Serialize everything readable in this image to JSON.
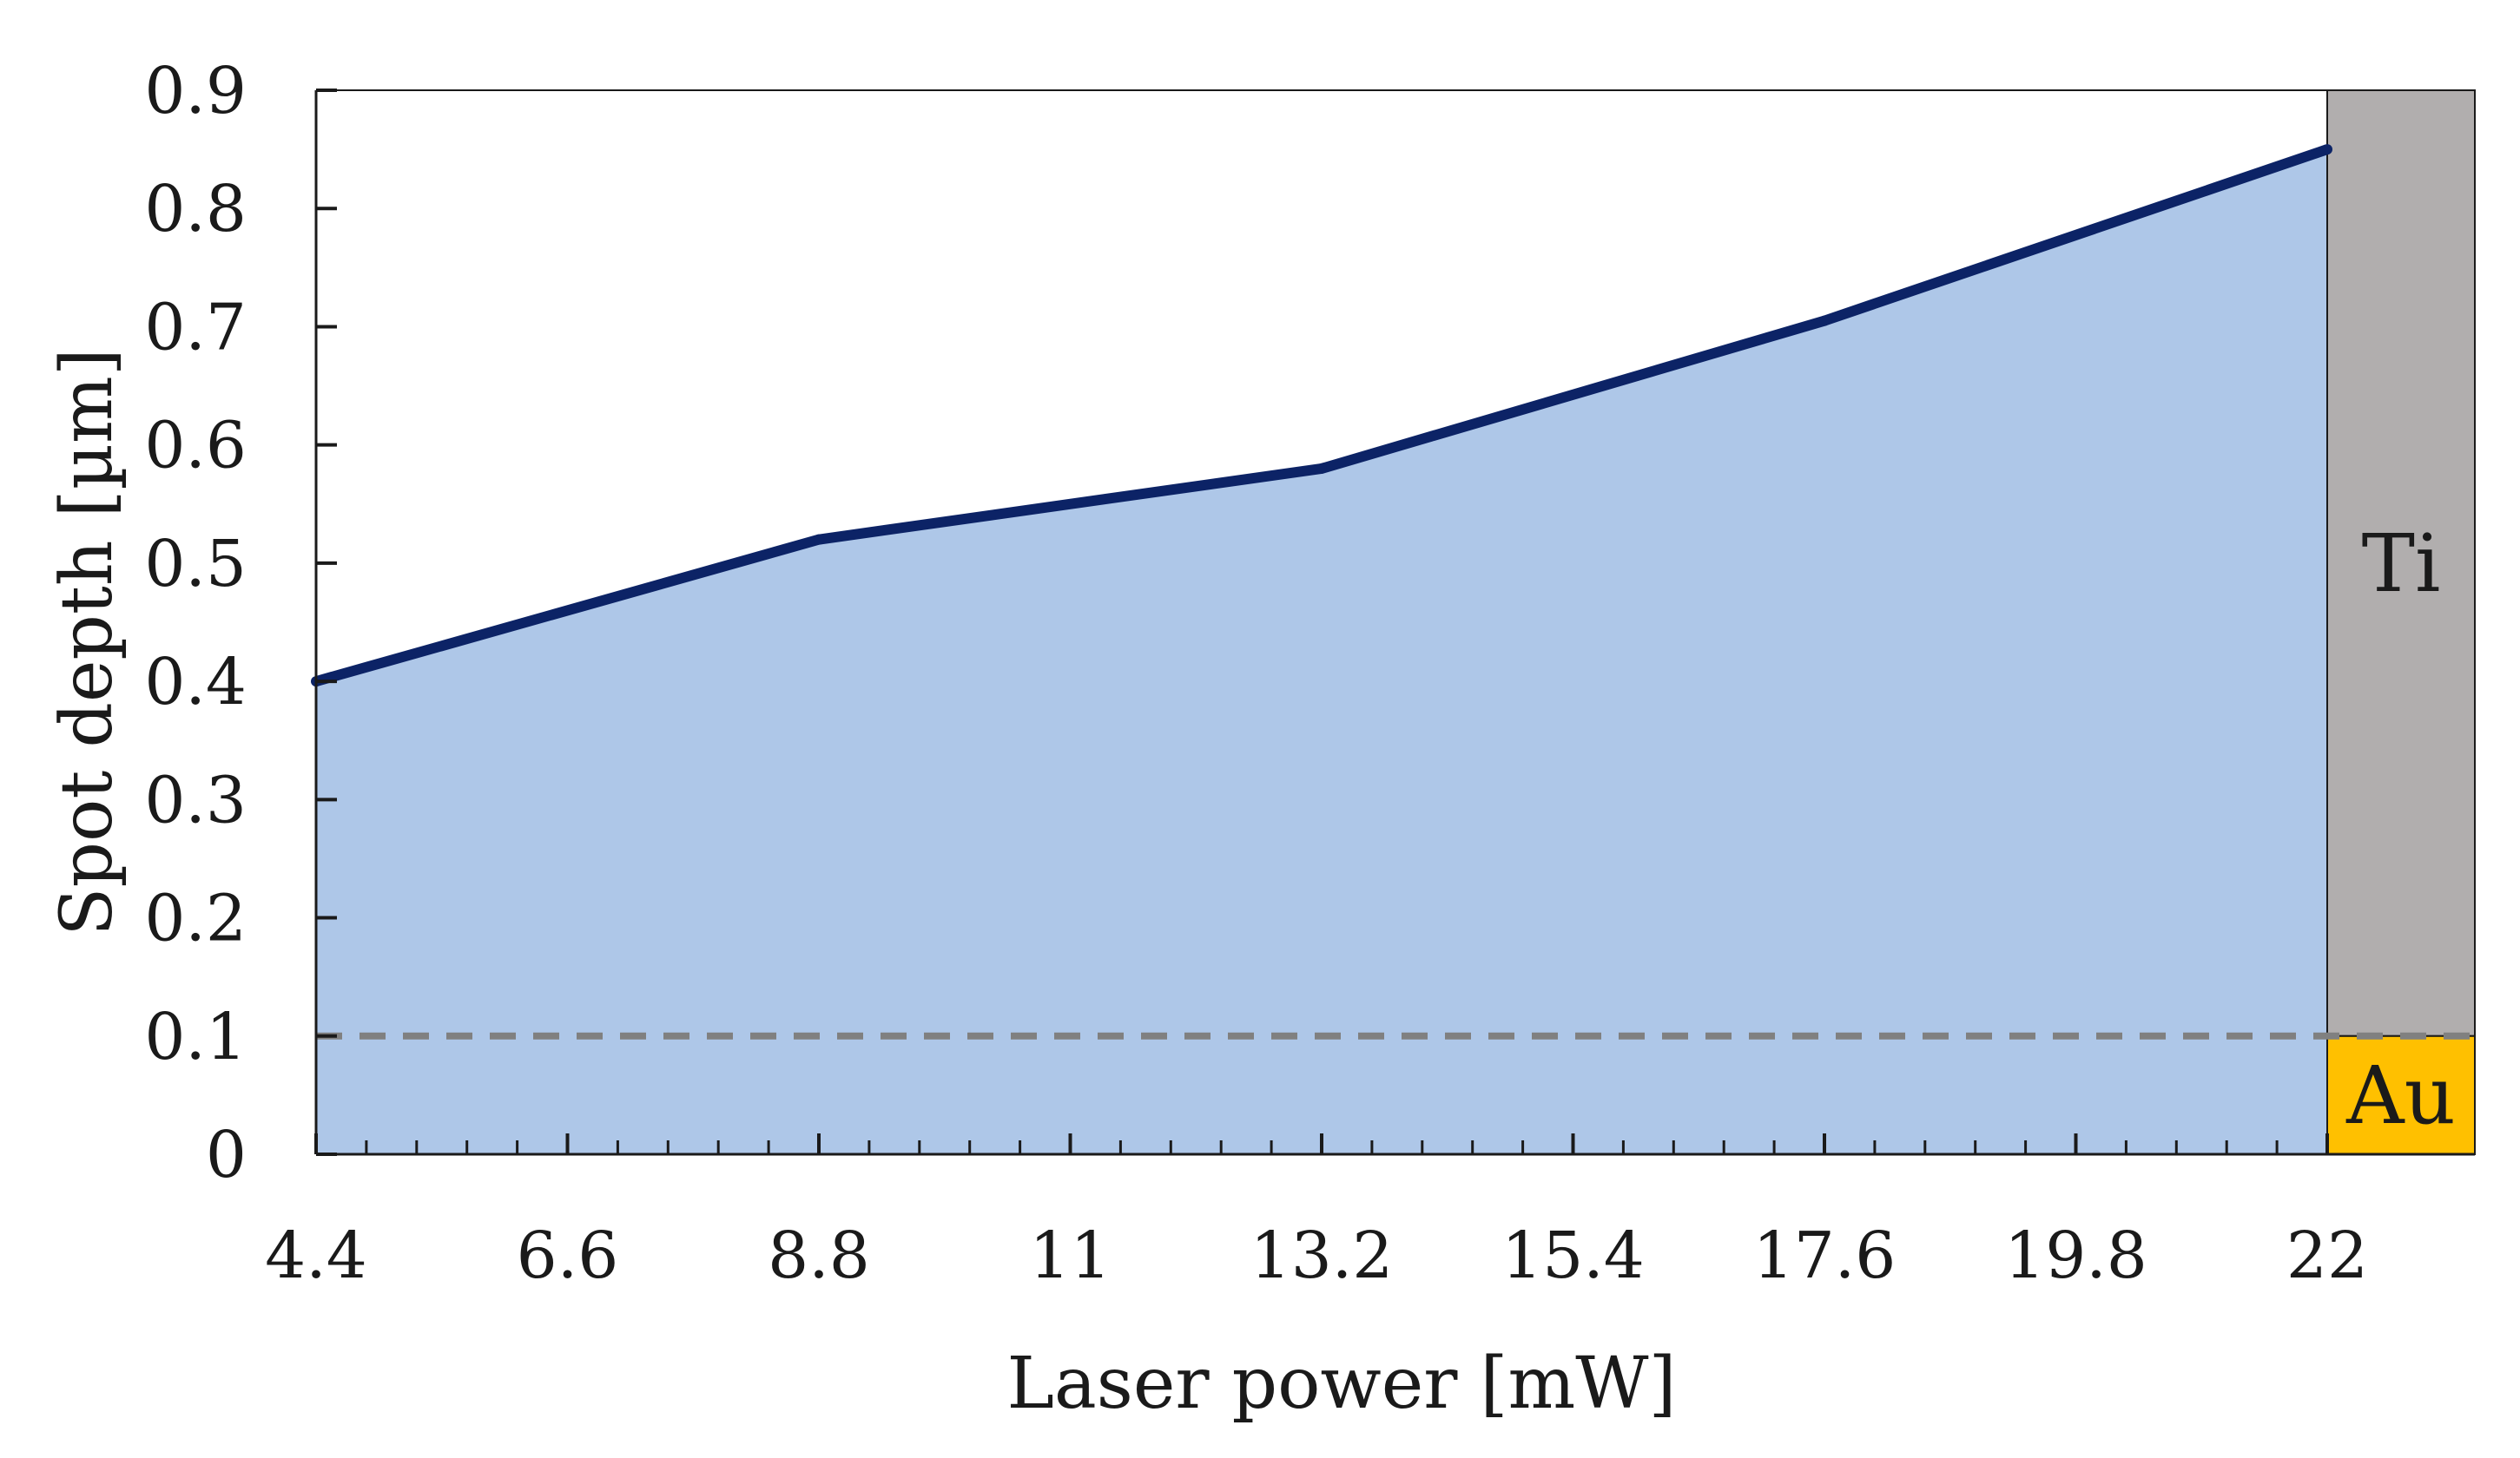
{
  "chart_data": {
    "type": "area",
    "title": "",
    "xlabel": "Laser power [mW]",
    "ylabel": "Spot  depth [µm]",
    "x_ticks": [
      "4.4",
      "6.6",
      "8.8",
      "11",
      "13.2",
      "15.4",
      "17.6",
      "19.8",
      "22"
    ],
    "y_ticks": [
      "0",
      "0.1",
      "0.2",
      "0.3",
      "0.4",
      "0.5",
      "0.6",
      "0.7",
      "0.8",
      "0.9"
    ],
    "xlim": [
      4.4,
      22
    ],
    "ylim": [
      0,
      0.9
    ],
    "x_minor_step": 0.44,
    "series": [
      {
        "x": [
          4.4,
          8.8,
          13.2,
          17.6,
          22
        ],
        "y": [
          0.4,
          0.52,
          0.58,
          0.705,
          0.85
        ],
        "line_color": "#0c2366",
        "fill_color": "#aec7e8"
      }
    ],
    "reference_line": {
      "y": 0.1,
      "color": "#808080",
      "style": "dashed"
    },
    "layers": [
      {
        "label": "Ti",
        "from": 0.1,
        "to": 0.9,
        "color": "#b1aeae"
      },
      {
        "label": "Au",
        "from": 0,
        "to": 0.1,
        "color": "#ffc000"
      }
    ],
    "grid": false,
    "legend": "none"
  }
}
